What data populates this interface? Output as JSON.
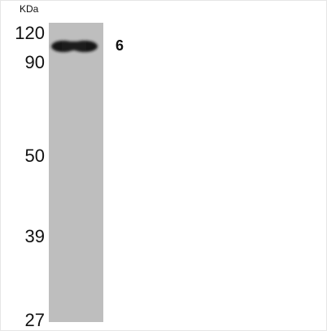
{
  "unit_label": "KDa",
  "markers": [
    "120",
    "90",
    "50",
    "39",
    "27"
  ],
  "band_label": "6"
}
